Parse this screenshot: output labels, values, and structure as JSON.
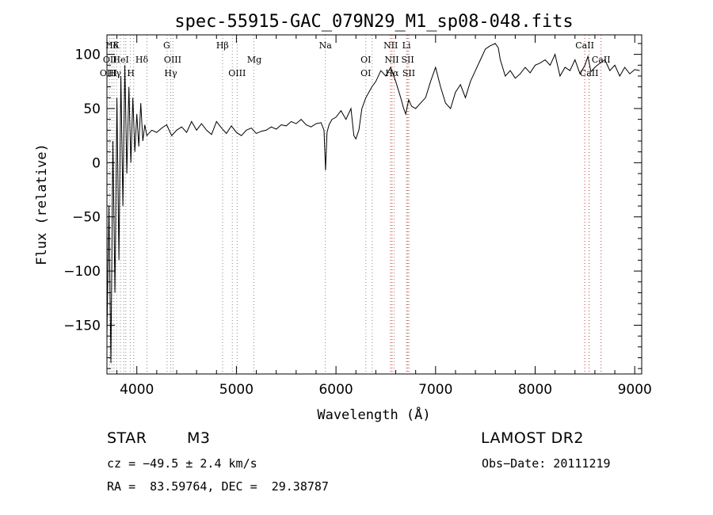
{
  "chart_data": {
    "type": "line",
    "title": "spec-55915-GAC_079N29_M1_sp08-048.fits",
    "xlabel": "Wavelength (Å)",
    "ylabel": "Flux (relative)",
    "xlim": [
      3700,
      9070
    ],
    "ylim": [
      -195,
      118
    ],
    "xticks": [
      4000,
      5000,
      6000,
      7000,
      8000,
      9000
    ],
    "yticks": [
      100,
      50,
      0,
      -50,
      -100,
      -150
    ],
    "grid": false,
    "series": [
      {
        "x": [
          3700,
          3720,
          3740,
          3760,
          3780,
          3800,
          3820,
          3840,
          3860,
          3880,
          3900,
          3920,
          3940,
          3960,
          3980,
          4000,
          4020,
          4040,
          4060,
          4080,
          4100,
          4150,
          4200,
          4250,
          4300,
          4350,
          4400,
          4450,
          4500,
          4550,
          4600,
          4650,
          4700,
          4750,
          4800,
          4850,
          4900,
          4950,
          5000,
          5050,
          5100,
          5150,
          5200,
          5250,
          5300,
          5350,
          5400,
          5450,
          5500,
          5550,
          5600,
          5650,
          5700,
          5750,
          5800,
          5850,
          5880,
          5895,
          5910,
          5930,
          5960,
          6000,
          6050,
          6100,
          6150,
          6180,
          6200,
          6230,
          6260,
          6300,
          6330,
          6360,
          6400,
          6450,
          6500,
          6550,
          6600,
          6650,
          6680,
          6700,
          6730,
          6760,
          6800,
          6850,
          6900,
          6950,
          7000,
          7050,
          7100,
          7150,
          7200,
          7250,
          7300,
          7350,
          7400,
          7450,
          7500,
          7550,
          7600,
          7630,
          7650,
          7700,
          7750,
          7800,
          7850,
          7900,
          7950,
          8000,
          8050,
          8100,
          8150,
          8200,
          8250,
          8300,
          8350,
          8400,
          8450,
          8500,
          8530,
          8560,
          8600,
          8650,
          8700,
          8750,
          8800,
          8850,
          8900,
          8950,
          9000,
          9050
        ],
        "y": [
          -160,
          -40,
          -185,
          20,
          -120,
          60,
          -90,
          80,
          -40,
          90,
          -10,
          70,
          0,
          60,
          10,
          45,
          15,
          55,
          20,
          35,
          25,
          30,
          28,
          32,
          35,
          25,
          30,
          33,
          28,
          38,
          30,
          36,
          30,
          26,
          38,
          32,
          27,
          34,
          28,
          25,
          30,
          32,
          27,
          29,
          30,
          33,
          31,
          35,
          34,
          38,
          36,
          40,
          35,
          33,
          36,
          37,
          30,
          -7,
          28,
          35,
          40,
          42,
          48,
          40,
          50,
          25,
          22,
          30,
          50,
          60,
          65,
          70,
          75,
          85,
          80,
          88,
          75,
          60,
          50,
          45,
          58,
          52,
          50,
          55,
          60,
          75,
          88,
          70,
          55,
          50,
          65,
          72,
          60,
          75,
          85,
          95,
          105,
          108,
          110,
          106,
          95,
          80,
          85,
          78,
          82,
          88,
          83,
          90,
          92,
          95,
          90,
          100,
          80,
          88,
          85,
          95,
          82,
          90,
          98,
          84,
          88,
          92,
          95,
          85,
          90,
          80,
          88,
          82,
          86,
          85
        ]
      }
    ],
    "spectral_lines": [
      {
        "label": "Hδ",
        "wl": 3750,
        "row": 1
      },
      {
        "label": "K",
        "wl": 3790,
        "row": 1
      },
      {
        "label": "OII",
        "wl": 3730,
        "row": 2
      },
      {
        "label": "HeI",
        "wl": 3840,
        "row": 2
      },
      {
        "label": "Hδ",
        "wl": 4050,
        "row": 2
      },
      {
        "label": "OIII",
        "wl": 3715,
        "row": 3
      },
      {
        "label": "Hγ",
        "wl": 3780,
        "row": 3
      },
      {
        "label": "H",
        "wl": 3940,
        "row": 3
      },
      {
        "label": "G",
        "wl": 4300,
        "row": 1
      },
      {
        "label": "OIII",
        "wl": 4360,
        "row": 2
      },
      {
        "label": "Hγ",
        "wl": 4340,
        "row": 3
      },
      {
        "label": "Hβ",
        "wl": 4860,
        "row": 1
      },
      {
        "label": "Mg",
        "wl": 5180,
        "row": 2
      },
      {
        "label": "OIII",
        "wl": 5007,
        "row": 3
      },
      {
        "label": "Na",
        "wl": 5893,
        "row": 1
      },
      {
        "label": "OI",
        "wl": 6300,
        "row": 2
      },
      {
        "label": "OI",
        "wl": 6300,
        "row": 3
      },
      {
        "label": "NII",
        "wl": 6550,
        "row": 1
      },
      {
        "label": "Li",
        "wl": 6708,
        "row": 1
      },
      {
        "label": "NII",
        "wl": 6560,
        "row": 2
      },
      {
        "label": "SII",
        "wl": 6720,
        "row": 2
      },
      {
        "label": "Hα",
        "wl": 6563,
        "row": 3
      },
      {
        "label": "SII",
        "wl": 6731,
        "row": 3
      },
      {
        "label": "CaII",
        "wl": 8498,
        "row": 1
      },
      {
        "label": "CaII",
        "wl": 8662,
        "row": 2
      },
      {
        "label": "CaII",
        "wl": 8542,
        "row": 3
      }
    ],
    "line_markers": [
      {
        "wl": 3727,
        "color": "#888888"
      },
      {
        "wl": 3750,
        "color": "#888888"
      },
      {
        "wl": 3771,
        "color": "#888888"
      },
      {
        "wl": 3798,
        "color": "#888888"
      },
      {
        "wl": 3835,
        "color": "#888888"
      },
      {
        "wl": 3869,
        "color": "#888888"
      },
      {
        "wl": 3889,
        "color": "#888888"
      },
      {
        "wl": 3934,
        "color": "#888888"
      },
      {
        "wl": 3969,
        "color": "#888888"
      },
      {
        "wl": 4102,
        "color": "#888888"
      },
      {
        "wl": 4304,
        "color": "#888888"
      },
      {
        "wl": 4340,
        "color": "#888888"
      },
      {
        "wl": 4363,
        "color": "#888888"
      },
      {
        "wl": 4861,
        "color": "#888888"
      },
      {
        "wl": 4959,
        "color": "#888888"
      },
      {
        "wl": 5007,
        "color": "#888888"
      },
      {
        "wl": 5175,
        "color": "#888888"
      },
      {
        "wl": 5893,
        "color": "#888888"
      },
      {
        "wl": 6300,
        "color": "#888888"
      },
      {
        "wl": 6364,
        "color": "#888888"
      },
      {
        "wl": 6548,
        "color": "#cc3333"
      },
      {
        "wl": 6563,
        "color": "#cc3333"
      },
      {
        "wl": 6584,
        "color": "#888888"
      },
      {
        "wl": 6708,
        "color": "#888888"
      },
      {
        "wl": 6717,
        "color": "#cc3333"
      },
      {
        "wl": 6731,
        "color": "#cc3333"
      },
      {
        "wl": 8498,
        "color": "#cc3333"
      },
      {
        "wl": 8542,
        "color": "#cc3333"
      },
      {
        "wl": 8662,
        "color": "#cc3333"
      }
    ]
  },
  "info": {
    "class": "STAR",
    "subclass": "M3",
    "survey": "LAMOST DR2",
    "cz": "cz = −49.5 ± 2.4 km/s",
    "obsdate": "Obs−Date: 20111219",
    "radec": "RA =  83.59764, DEC =  29.38787"
  }
}
